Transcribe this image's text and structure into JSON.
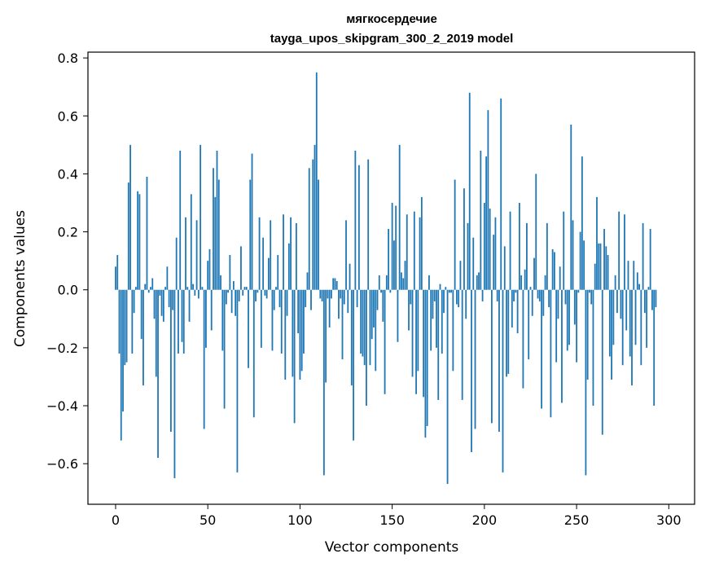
{
  "chart_data": {
    "type": "bar",
    "title": "мягкосердечие",
    "subtitle": "tayga_upos_skipgram_300_2_2019 model",
    "xlabel": "Vector components",
    "ylabel": "Components values",
    "xlim": [
      -15,
      314
    ],
    "ylim": [
      -0.74,
      0.82
    ],
    "xticks": [
      0,
      50,
      100,
      150,
      200,
      250,
      300
    ],
    "xtick_labels": [
      "0",
      "50",
      "100",
      "150",
      "200",
      "250",
      "300"
    ],
    "yticks": [
      -0.6,
      -0.4,
      -0.2,
      0.0,
      0.2,
      0.4,
      0.6,
      0.8
    ],
    "ytick_labels": [
      "−0.6",
      "−0.4",
      "−0.2",
      "0.0",
      "0.2",
      "0.4",
      "0.6",
      "0.8"
    ],
    "bar_color": "#1f77b4",
    "grid": false,
    "values": [
      0.08,
      0.12,
      -0.22,
      -0.52,
      -0.42,
      -0.26,
      -0.25,
      0.37,
      0.5,
      -0.22,
      -0.08,
      0.01,
      0.34,
      0.33,
      -0.17,
      -0.33,
      0.02,
      0.39,
      -0.01,
      0.01,
      0.04,
      -0.1,
      -0.3,
      -0.58,
      -0.02,
      -0.09,
      -0.11,
      0.01,
      0.08,
      -0.06,
      -0.49,
      -0.07,
      -0.65,
      0.18,
      -0.22,
      0.48,
      -0.18,
      -0.22,
      0.25,
      0.01,
      -0.11,
      0.33,
      0.02,
      -0.02,
      0.24,
      -0.03,
      0.5,
      0.01,
      -0.48,
      -0.2,
      0.1,
      0.14,
      -0.14,
      0.42,
      0.32,
      0.48,
      0.38,
      0.05,
      -0.21,
      -0.41,
      -0.05,
      -0.01,
      0.12,
      -0.08,
      0.03,
      -0.09,
      -0.63,
      -0.04,
      0.15,
      -0.02,
      0.01,
      0.01,
      -0.27,
      0.38,
      0.47,
      -0.44,
      -0.04,
      -0.01,
      0.25,
      -0.2,
      0.18,
      -0.02,
      -0.03,
      0.11,
      0.24,
      -0.21,
      -0.07,
      0.01,
      0.12,
      -0.06,
      -0.22,
      0.26,
      -0.31,
      -0.09,
      0.16,
      0.25,
      -0.3,
      -0.46,
      0.23,
      -0.15,
      -0.31,
      -0.28,
      -0.22,
      -0.06,
      0.06,
      0.42,
      -0.07,
      0.45,
      0.5,
      0.75,
      0.38,
      -0.03,
      -0.04,
      -0.64,
      -0.32,
      -0.03,
      -0.13,
      -0.03,
      0.04,
      0.04,
      0.03,
      -0.1,
      -0.03,
      -0.24,
      -0.05,
      0.24,
      -0.08,
      0.09,
      -0.33,
      -0.52,
      0.48,
      -0.06,
      0.43,
      -0.22,
      -0.23,
      -0.26,
      -0.4,
      0.45,
      -0.26,
      -0.17,
      -0.13,
      -0.28,
      -0.07,
      0.05,
      -0.01,
      -0.11,
      -0.36,
      0.05,
      0.21,
      -0.01,
      0.3,
      0.17,
      0.29,
      -0.18,
      0.5,
      0.06,
      0.04,
      0.1,
      0.26,
      -0.14,
      -0.05,
      -0.3,
      0.27,
      -0.36,
      -0.28,
      0.25,
      0.32,
      -0.37,
      -0.51,
      -0.47,
      0.05,
      -0.21,
      -0.1,
      -0.04,
      -0.2,
      -0.38,
      0.02,
      -0.22,
      -0.08,
      0.01,
      -0.67,
      -0.01,
      -0.01,
      -0.28,
      0.38,
      -0.05,
      -0.06,
      0.1,
      -0.38,
      0.35,
      -0.1,
      0.23,
      0.68,
      -0.56,
      0.18,
      -0.48,
      0.05,
      0.06,
      0.48,
      -0.04,
      0.3,
      0.46,
      0.62,
      0.28,
      -0.46,
      0.19,
      0.25,
      -0.04,
      -0.49,
      0.66,
      -0.63,
      0.15,
      -0.3,
      -0.29,
      0.27,
      -0.13,
      -0.04,
      -0.01,
      -0.15,
      0.3,
      0.05,
      -0.34,
      0.07,
      0.23,
      -0.24,
      0.01,
      -0.09,
      0.11,
      0.4,
      -0.03,
      -0.04,
      -0.41,
      -0.09,
      0.05,
      0.23,
      -0.06,
      -0.44,
      0.14,
      0.13,
      -0.25,
      -0.1,
      0.08,
      -0.39,
      0.27,
      -0.05,
      -0.21,
      -0.19,
      0.57,
      0.24,
      -0.12,
      -0.25,
      -0.01,
      0.2,
      0.46,
      0.17,
      -0.64,
      -0.31,
      -0.01,
      -0.05,
      -0.4,
      0.09,
      0.32,
      0.16,
      0.16,
      -0.5,
      0.21,
      0.15,
      0.12,
      -0.23,
      -0.31,
      -0.19,
      0.05,
      -0.08,
      0.27,
      -0.1,
      -0.26,
      0.26,
      -0.14,
      0.1,
      -0.23,
      -0.33,
      0.1,
      -0.19,
      0.06,
      0.02,
      -0.26,
      0.23,
      -0.08,
      -0.2,
      0.01,
      0.21,
      -0.07,
      -0.4,
      -0.06
    ]
  }
}
